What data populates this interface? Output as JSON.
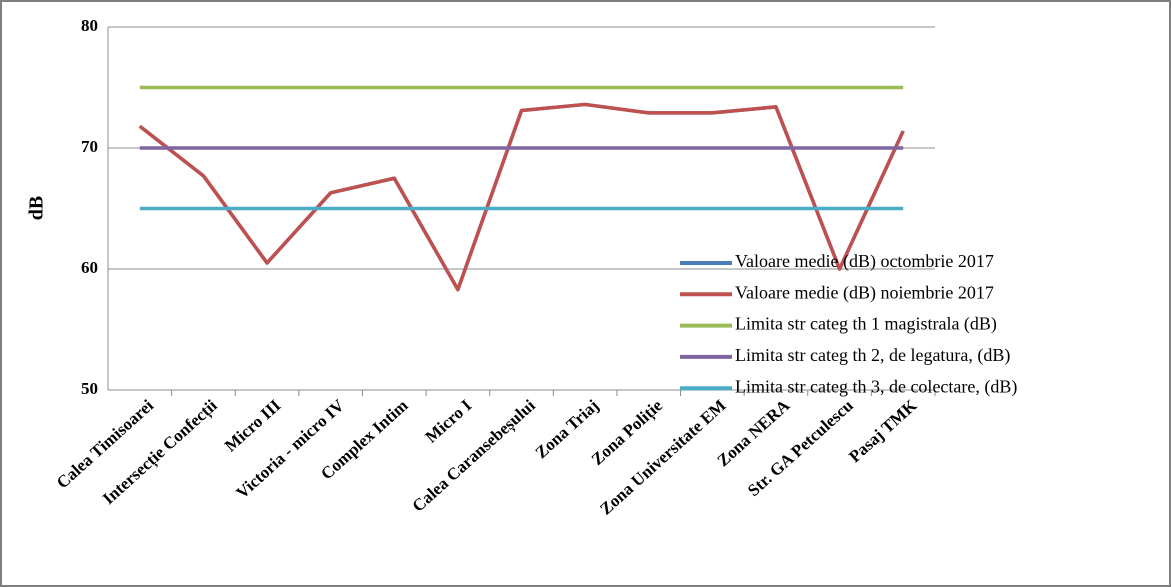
{
  "chart_data": {
    "type": "line",
    "y_label": "dB",
    "categories": [
      "Calea Timisoarei",
      "Intersecție Confecții",
      "Micro III",
      "Victoria - micro IV",
      "Complex Intim",
      "Micro I",
      "Calea Caransebeșului",
      "Zona Triaj",
      "Zona Poliție",
      "Zona Universitate EM",
      "Zona NERA",
      "Str. GA Petculescu",
      "Pasaj TMK"
    ],
    "series": [
      {
        "name": "Valoare medie (dB) octombrie 2017",
        "color": "#4a7ebb",
        "values": [
          71.8,
          67.7,
          60.5,
          66.3,
          67.5,
          58.3,
          73.1,
          73.6,
          72.9,
          72.9,
          73.4,
          60.0,
          71.4
        ]
      },
      {
        "name": "Valoare medie (dB) noiembrie 2017",
        "color": "#c0504d",
        "values": [
          71.8,
          67.7,
          60.5,
          66.3,
          67.5,
          58.3,
          73.1,
          73.6,
          72.9,
          72.9,
          73.4,
          60.0,
          71.4
        ]
      },
      {
        "name": "Limita str categ th 1 magistrala (dB)",
        "color": "#9bbb59",
        "values": [
          75,
          75,
          75,
          75,
          75,
          75,
          75,
          75,
          75,
          75,
          75,
          75,
          75
        ]
      },
      {
        "name": "Limita str categ th 2, de legatura, (dB)",
        "color": "#8064a2",
        "values": [
          70,
          70,
          70,
          70,
          70,
          70,
          70,
          70,
          70,
          70,
          70,
          70,
          70
        ]
      },
      {
        "name": "Limita str categ th 3, de colectare, (dB)",
        "color": "#4bacc6",
        "values": [
          65,
          65,
          65,
          65,
          65,
          65,
          65,
          65,
          65,
          65,
          65,
          65,
          65
        ]
      }
    ],
    "ylim": [
      50,
      80
    ],
    "yticks": [
      50,
      60,
      70,
      80
    ],
    "grid": true,
    "legend": "right"
  }
}
